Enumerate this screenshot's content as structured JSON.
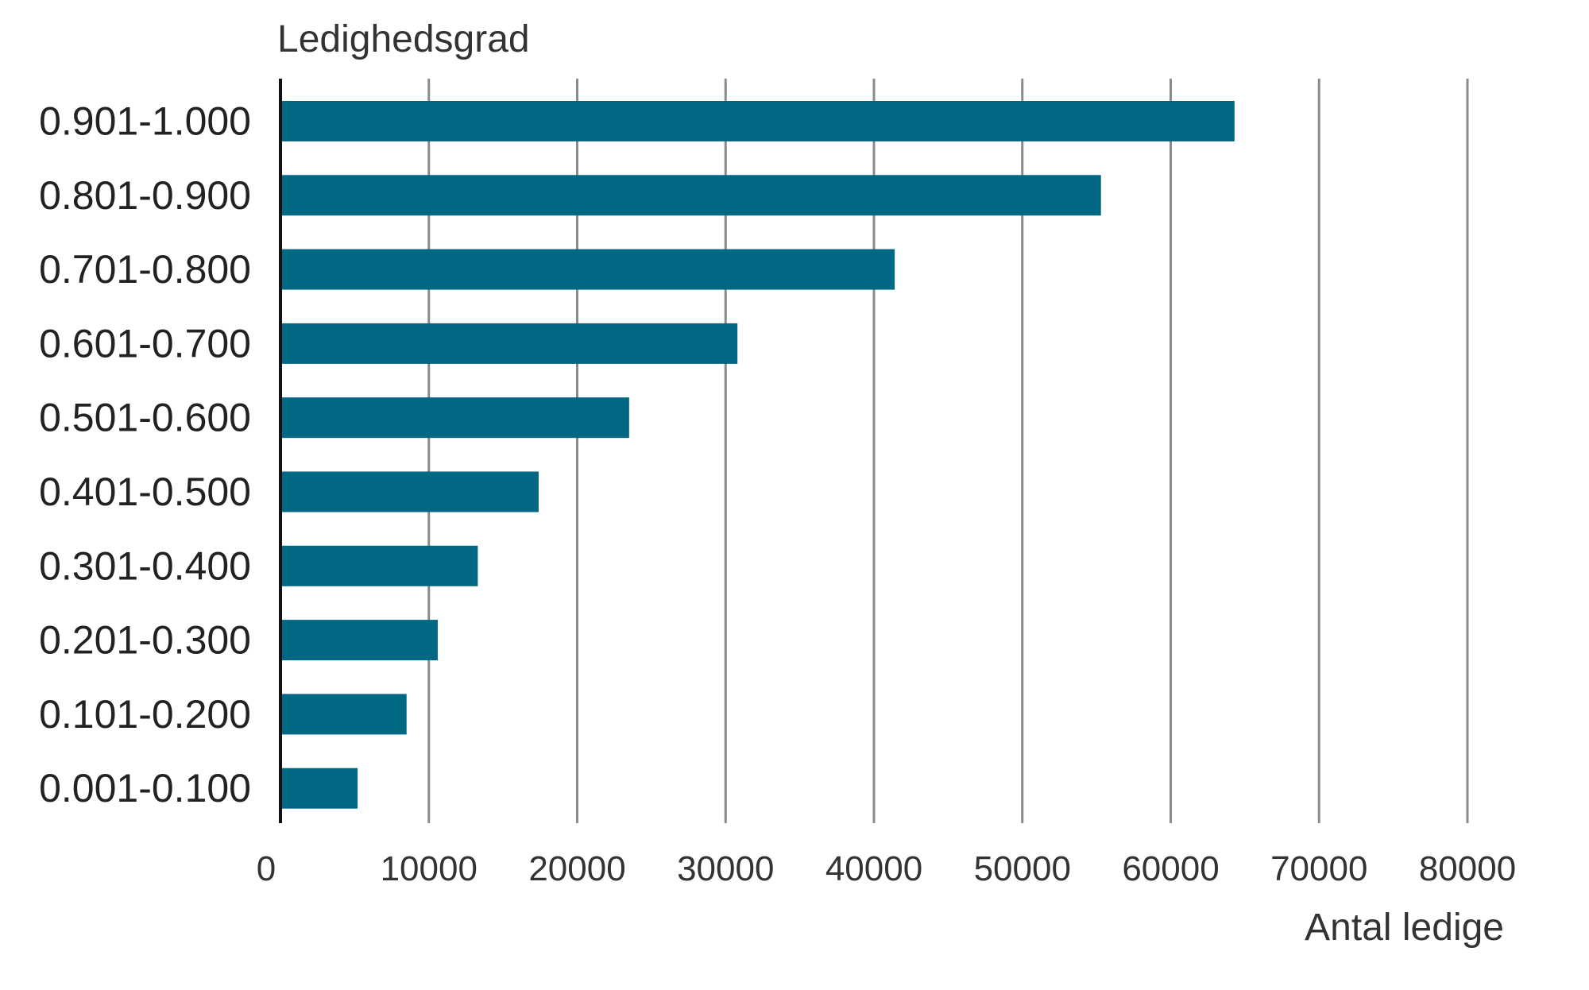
{
  "chart_data": {
    "type": "bar",
    "orientation": "horizontal",
    "title": "Ledighedsgrad",
    "xlabel": "Antal ledige",
    "ylabel": "Ledighedsgrad",
    "categories": [
      "0.901-1.000",
      "0.801-0.900",
      "0.701-0.800",
      "0.601-0.700",
      "0.501-0.600",
      "0.401-0.500",
      "0.301-0.400",
      "0.201-0.300",
      "0.101-0.200",
      "0.001-0.100"
    ],
    "values": [
      64300,
      55300,
      41400,
      30800,
      23500,
      17400,
      13300,
      10600,
      8500,
      5200
    ],
    "xlim": [
      0,
      80000
    ],
    "xticks": [
      "0",
      "10000",
      "20000",
      "30000",
      "40000",
      "50000",
      "60000",
      "70000",
      "80000"
    ],
    "grid": "vertical",
    "bar_color": "#006882",
    "legend": "none"
  }
}
